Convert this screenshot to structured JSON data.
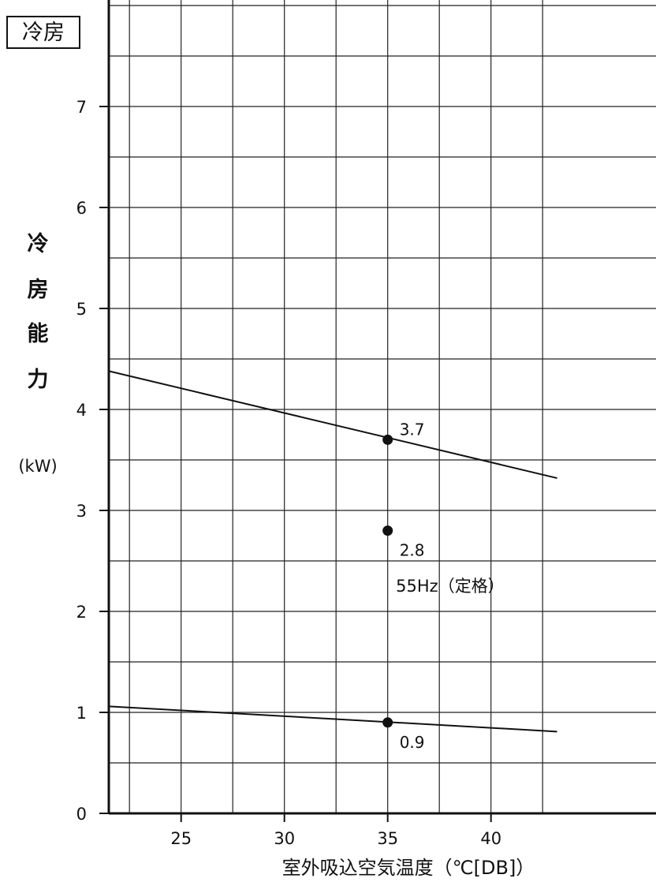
{
  "mode_label": "冷房",
  "chart_data": {
    "type": "line",
    "xlabel": "室外吸込空気温度（℃[DB]）",
    "ylabel_chars": [
      "冷",
      "房",
      "能",
      "力"
    ],
    "ylabel_unit": "(kW)",
    "xlim": [
      21.5,
      43.2
    ],
    "ylim": [
      0,
      8.2
    ],
    "x_ticks": [
      25,
      30,
      35,
      40
    ],
    "y_ticks": [
      0,
      1,
      2,
      3,
      4,
      5,
      6,
      7
    ],
    "grid": true,
    "series": [
      {
        "x": [
          21.5,
          43.2
        ],
        "y": [
          4.38,
          3.32
        ]
      },
      {
        "x": [
          21.5,
          43.2
        ],
        "y": [
          1.06,
          0.81
        ]
      }
    ],
    "points": [
      {
        "x": 35,
        "y": 3.7,
        "label": "3.7",
        "label_pos": "above-right"
      },
      {
        "x": 35,
        "y": 2.8,
        "label": "2.8",
        "label_pos": "below-right"
      },
      {
        "x": 35,
        "y": 0.9,
        "label": "0.9",
        "label_pos": "below-right"
      }
    ],
    "annotations": [
      {
        "x": 35.4,
        "y": 2.25,
        "text": "55Hz（定格）"
      }
    ]
  }
}
